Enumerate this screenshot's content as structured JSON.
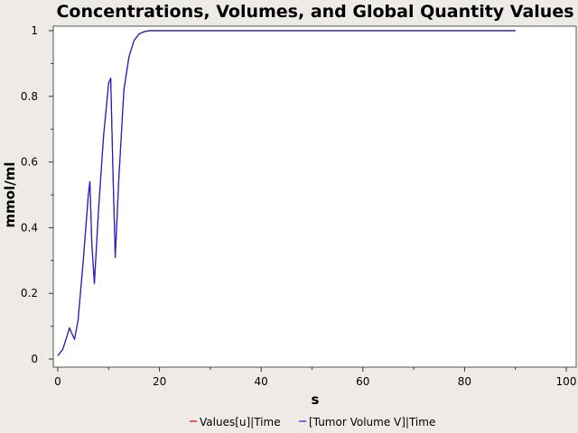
{
  "chart_data": {
    "type": "line",
    "title": "Concentrations, Volumes, and Global Quantity Values",
    "xlabel": "s",
    "ylabel": "mmol/ml",
    "xlim": [
      0,
      100
    ],
    "ylim": [
      0,
      1
    ],
    "xticks": [
      "0",
      "20",
      "40",
      "60",
      "80",
      "100"
    ],
    "yticks": [
      "0",
      "0.2",
      "0.4",
      "0.6",
      "0.8",
      "1"
    ],
    "grid": false,
    "legend_position": "bottom",
    "series": [
      {
        "name": "Values[u]|Time",
        "color": "#cc0000",
        "x": [
          0,
          1,
          2,
          2.3,
          2.7,
          3.3,
          4,
          5,
          6,
          6.3,
          6.7,
          7.2,
          8,
          9,
          10,
          10.4,
          10.8,
          11.3,
          12,
          13,
          14,
          15,
          16,
          17,
          18,
          19,
          20,
          25,
          30,
          40,
          50,
          60,
          70,
          80,
          90
        ],
        "y": [
          0.01,
          0.03,
          0.08,
          0.095,
          0.08,
          0.06,
          0.12,
          0.3,
          0.5,
          0.54,
          0.35,
          0.23,
          0.45,
          0.68,
          0.84,
          0.855,
          0.6,
          0.31,
          0.55,
          0.82,
          0.92,
          0.97,
          0.99,
          0.997,
          1.0,
          1.0,
          1.0,
          1.0,
          1.0,
          1.0,
          1.0,
          1.0,
          1.0,
          1.0,
          1.0
        ]
      },
      {
        "name": "[Tumor Volume V]|Time",
        "color": "#1f1fd6",
        "x": [
          0,
          1,
          2,
          2.3,
          2.7,
          3.3,
          4,
          5,
          6,
          6.3,
          6.7,
          7.2,
          8,
          9,
          10,
          10.4,
          10.8,
          11.3,
          12,
          13,
          14,
          15,
          16,
          17,
          18,
          19,
          20,
          25,
          30,
          40,
          50,
          60,
          70,
          80,
          90
        ],
        "y": [
          0.01,
          0.03,
          0.08,
          0.095,
          0.08,
          0.06,
          0.12,
          0.3,
          0.5,
          0.54,
          0.35,
          0.23,
          0.45,
          0.68,
          0.84,
          0.855,
          0.6,
          0.31,
          0.55,
          0.82,
          0.92,
          0.97,
          0.99,
          0.997,
          1.0,
          1.0,
          1.0,
          1.0,
          1.0,
          1.0,
          1.0,
          1.0,
          1.0,
          1.0,
          1.0
        ]
      }
    ]
  }
}
